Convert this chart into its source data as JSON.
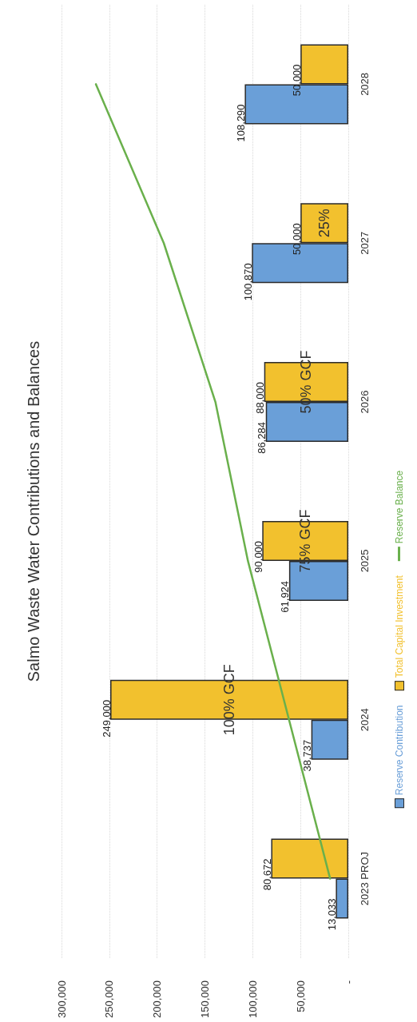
{
  "chart_data": {
    "type": "bar",
    "orientation": "horizontal",
    "title": "Salmo Waste Water Contributions and Balances",
    "categories": [
      "2028",
      "2027",
      "2026",
      "2025",
      "2024",
      "2023 PROJ"
    ],
    "series": [
      {
        "name": "Reserve Contribution",
        "color": "#6a9fd8",
        "values": [
          108290,
          100870,
          86284,
          61924,
          38737,
          13033
        ],
        "value_labels": [
          "108,290",
          "100,870",
          "86,284",
          "61,924",
          "38,737",
          "13,033"
        ]
      },
      {
        "name": "Total Capital Investment",
        "color": "#f2c12e",
        "values": [
          50000,
          50000,
          88000,
          90000,
          249000,
          80672
        ],
        "value_labels": [
          "50,000",
          "50,000",
          "88,000",
          "90,000",
          "249,000",
          "80,672"
        ]
      },
      {
        "name": "Reserve Balance",
        "type": "line",
        "color": "#6ab04c",
        "values": [
          264000,
          193000,
          139000,
          105000,
          62000,
          19000
        ]
      }
    ],
    "xlim": [
      300000,
      0
    ],
    "xticks": [
      {
        "value": 0,
        "label": "-"
      },
      {
        "value": 50000,
        "label": "50,000"
      },
      {
        "value": 100000,
        "label": "100,000"
      },
      {
        "value": 150000,
        "label": "150,000"
      },
      {
        "value": 200000,
        "label": "200,000"
      },
      {
        "value": 250000,
        "label": "250,000"
      },
      {
        "value": 300000,
        "label": "300,000"
      }
    ],
    "grid": "x",
    "legend": "right",
    "marker": "none",
    "line_style": "solid",
    "annotations": [
      {
        "text": "100% GCF",
        "x": 124500,
        "y": "2024"
      },
      {
        "text": "75% GCF",
        "x": 45000,
        "y": "2025"
      },
      {
        "text": "50% GCF",
        "x": 44000,
        "y": "2026"
      },
      {
        "text": "25%",
        "x": 25000,
        "y": "2027"
      }
    ]
  }
}
